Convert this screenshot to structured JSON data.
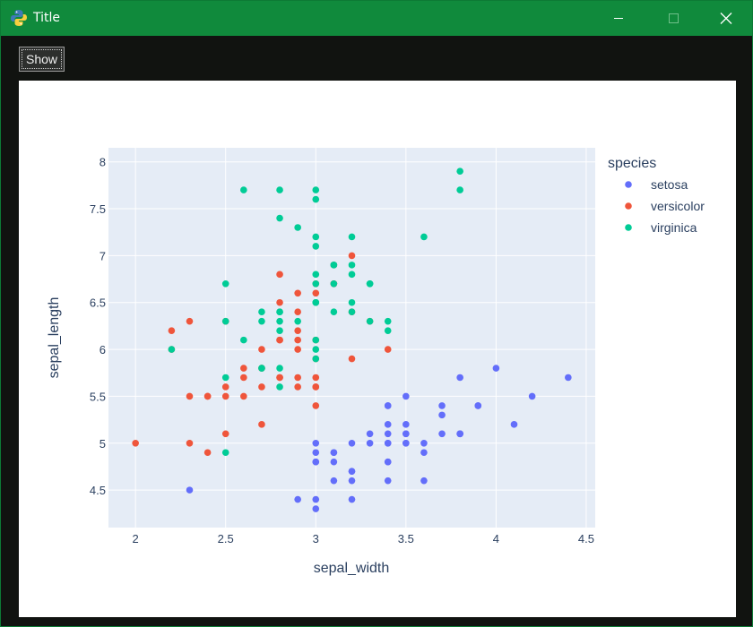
{
  "window": {
    "title": "Title",
    "app_icon": "python-icon",
    "titlebar_color": "#108a3c",
    "controls": [
      "minimize-icon",
      "maximize-icon",
      "close-icon"
    ]
  },
  "toolbar": {
    "show_label": "Show"
  },
  "chart_data": {
    "type": "scatter",
    "xlabel": "sepal_width",
    "ylabel": "sepal_length",
    "xlim": [
      1.85,
      4.55
    ],
    "ylim": [
      4.1,
      8.15
    ],
    "xticks": [
      2,
      2.5,
      3,
      3.5,
      4,
      4.5
    ],
    "yticks": [
      4.5,
      5,
      5.5,
      6,
      6.5,
      7,
      7.5,
      8
    ],
    "grid": true,
    "plot_background": "#e5ecf6",
    "legend_title": "species",
    "legend_position": "top-right",
    "series": [
      {
        "name": "setosa",
        "color": "#636efa",
        "points": [
          [
            3.5,
            5.1
          ],
          [
            3.0,
            4.9
          ],
          [
            3.2,
            4.7
          ],
          [
            3.1,
            4.6
          ],
          [
            3.6,
            5.0
          ],
          [
            3.9,
            5.4
          ],
          [
            3.4,
            4.6
          ],
          [
            3.4,
            5.0
          ],
          [
            2.9,
            4.4
          ],
          [
            3.1,
            4.9
          ],
          [
            3.7,
            5.4
          ],
          [
            3.4,
            4.8
          ],
          [
            3.0,
            4.8
          ],
          [
            3.0,
            4.3
          ],
          [
            4.0,
            5.8
          ],
          [
            4.4,
            5.7
          ],
          [
            3.9,
            5.4
          ],
          [
            3.5,
            5.1
          ],
          [
            3.8,
            5.7
          ],
          [
            3.8,
            5.1
          ],
          [
            3.4,
            5.4
          ],
          [
            3.7,
            5.1
          ],
          [
            3.6,
            4.6
          ],
          [
            3.3,
            5.1
          ],
          [
            3.4,
            4.8
          ],
          [
            3.0,
            5.0
          ],
          [
            3.4,
            5.0
          ],
          [
            3.5,
            5.2
          ],
          [
            3.4,
            5.2
          ],
          [
            3.2,
            4.7
          ],
          [
            3.1,
            4.8
          ],
          [
            3.4,
            5.4
          ],
          [
            4.1,
            5.2
          ],
          [
            4.2,
            5.5
          ],
          [
            3.1,
            4.9
          ],
          [
            3.2,
            5.0
          ],
          [
            3.5,
            5.5
          ],
          [
            3.6,
            4.9
          ],
          [
            3.0,
            4.4
          ],
          [
            3.4,
            5.1
          ],
          [
            3.5,
            5.0
          ],
          [
            2.3,
            4.5
          ],
          [
            3.2,
            4.4
          ],
          [
            3.5,
            5.0
          ],
          [
            3.8,
            5.1
          ],
          [
            3.0,
            4.8
          ],
          [
            3.8,
            5.1
          ],
          [
            3.2,
            4.6
          ],
          [
            3.7,
            5.3
          ],
          [
            3.3,
            5.0
          ]
        ]
      },
      {
        "name": "versicolor",
        "color": "#ef553b",
        "points": [
          [
            3.2,
            7.0
          ],
          [
            3.2,
            6.4
          ],
          [
            3.1,
            6.9
          ],
          [
            2.3,
            5.5
          ],
          [
            2.8,
            6.5
          ],
          [
            2.8,
            5.7
          ],
          [
            3.3,
            6.3
          ],
          [
            2.4,
            4.9
          ],
          [
            2.9,
            6.6
          ],
          [
            2.7,
            5.2
          ],
          [
            2.0,
            5.0
          ],
          [
            3.0,
            5.9
          ],
          [
            2.2,
            6.0
          ],
          [
            2.9,
            6.1
          ],
          [
            2.9,
            5.6
          ],
          [
            3.1,
            6.7
          ],
          [
            3.0,
            5.6
          ],
          [
            2.7,
            5.8
          ],
          [
            2.2,
            6.2
          ],
          [
            2.5,
            5.6
          ],
          [
            3.2,
            5.9
          ],
          [
            2.8,
            6.1
          ],
          [
            2.5,
            6.3
          ],
          [
            2.8,
            6.1
          ],
          [
            2.9,
            6.4
          ],
          [
            3.0,
            6.6
          ],
          [
            2.8,
            6.8
          ],
          [
            3.0,
            6.7
          ],
          [
            2.9,
            6.0
          ],
          [
            2.6,
            5.7
          ],
          [
            2.4,
            5.5
          ],
          [
            2.4,
            5.5
          ],
          [
            2.7,
            5.8
          ],
          [
            2.7,
            6.0
          ],
          [
            3.0,
            5.4
          ],
          [
            3.4,
            6.0
          ],
          [
            3.1,
            6.7
          ],
          [
            2.3,
            6.3
          ],
          [
            3.0,
            5.6
          ],
          [
            2.5,
            5.5
          ],
          [
            2.6,
            5.5
          ],
          [
            3.0,
            6.1
          ],
          [
            2.6,
            5.8
          ],
          [
            2.3,
            5.0
          ],
          [
            2.7,
            5.6
          ],
          [
            3.0,
            5.7
          ],
          [
            2.9,
            5.7
          ],
          [
            2.9,
            6.2
          ],
          [
            2.5,
            5.1
          ],
          [
            2.8,
            5.7
          ]
        ]
      },
      {
        "name": "virginica",
        "color": "#00cc96",
        "points": [
          [
            3.3,
            6.3
          ],
          [
            2.7,
            5.8
          ],
          [
            3.0,
            7.1
          ],
          [
            2.9,
            6.3
          ],
          [
            3.0,
            6.5
          ],
          [
            3.0,
            7.6
          ],
          [
            2.5,
            4.9
          ],
          [
            2.9,
            7.3
          ],
          [
            2.5,
            6.7
          ],
          [
            3.6,
            7.2
          ],
          [
            3.2,
            6.5
          ],
          [
            2.7,
            6.4
          ],
          [
            3.0,
            6.8
          ],
          [
            2.5,
            5.7
          ],
          [
            2.8,
            5.8
          ],
          [
            3.2,
            6.4
          ],
          [
            3.0,
            6.5
          ],
          [
            3.8,
            7.7
          ],
          [
            2.6,
            7.7
          ],
          [
            2.2,
            6.0
          ],
          [
            3.2,
            6.9
          ],
          [
            2.8,
            5.6
          ],
          [
            2.8,
            7.7
          ],
          [
            2.7,
            6.3
          ],
          [
            3.3,
            6.7
          ],
          [
            3.2,
            7.2
          ],
          [
            2.8,
            6.2
          ],
          [
            3.0,
            6.1
          ],
          [
            2.8,
            6.4
          ],
          [
            3.0,
            7.2
          ],
          [
            2.8,
            7.4
          ],
          [
            3.8,
            7.9
          ],
          [
            2.8,
            6.4
          ],
          [
            2.8,
            6.3
          ],
          [
            2.6,
            6.1
          ],
          [
            3.0,
            7.7
          ],
          [
            3.4,
            6.3
          ],
          [
            3.1,
            6.4
          ],
          [
            3.0,
            6.0
          ],
          [
            3.1,
            6.9
          ],
          [
            3.1,
            6.7
          ],
          [
            3.1,
            6.9
          ],
          [
            2.7,
            5.8
          ],
          [
            3.2,
            6.8
          ],
          [
            3.3,
            6.7
          ],
          [
            3.0,
            6.7
          ],
          [
            2.5,
            6.3
          ],
          [
            3.0,
            6.5
          ],
          [
            3.4,
            6.2
          ],
          [
            3.0,
            5.9
          ]
        ]
      }
    ]
  }
}
